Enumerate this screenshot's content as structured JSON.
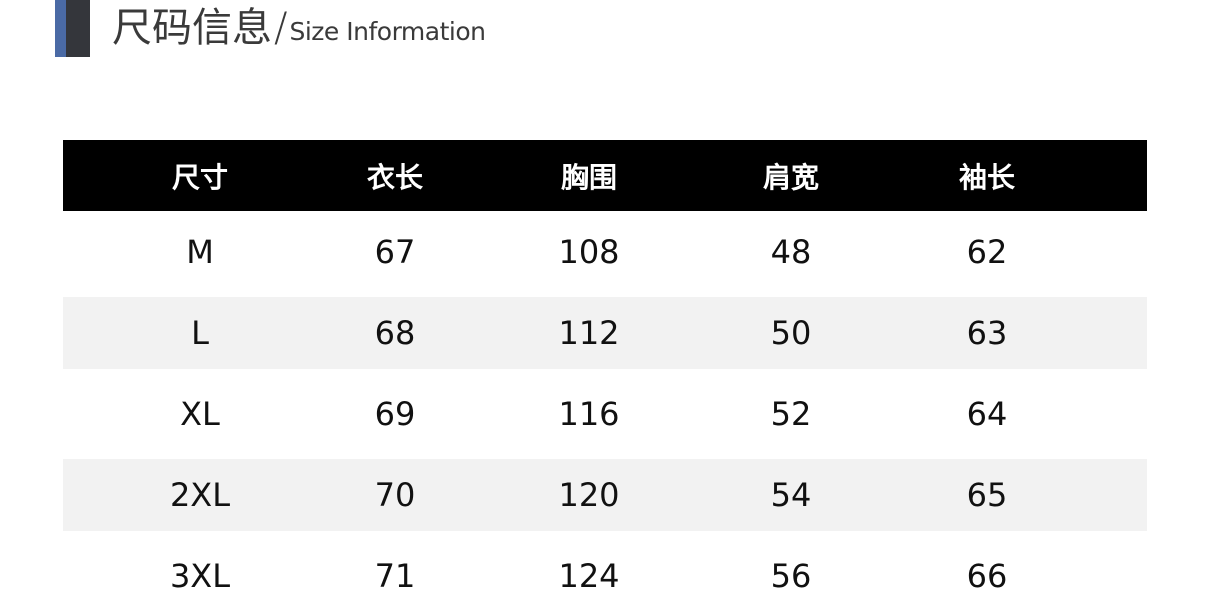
{
  "header": {
    "title_cn": "尺码信息",
    "separator": "/",
    "title_en": "Size Information",
    "accent_color": "#4a6aa5",
    "bar_color": "#34363b"
  },
  "table": {
    "columns": [
      "尺寸",
      "衣长",
      "胸围",
      "肩宽",
      "袖长"
    ],
    "rows": [
      [
        "M",
        "67",
        "108",
        "48",
        "62"
      ],
      [
        "L",
        "68",
        "112",
        "50",
        "63"
      ],
      [
        "XL",
        "69",
        "116",
        "52",
        "64"
      ],
      [
        "2XL",
        "70",
        "120",
        "54",
        "65"
      ],
      [
        "3XL",
        "71",
        "124",
        "56",
        "66"
      ]
    ]
  }
}
